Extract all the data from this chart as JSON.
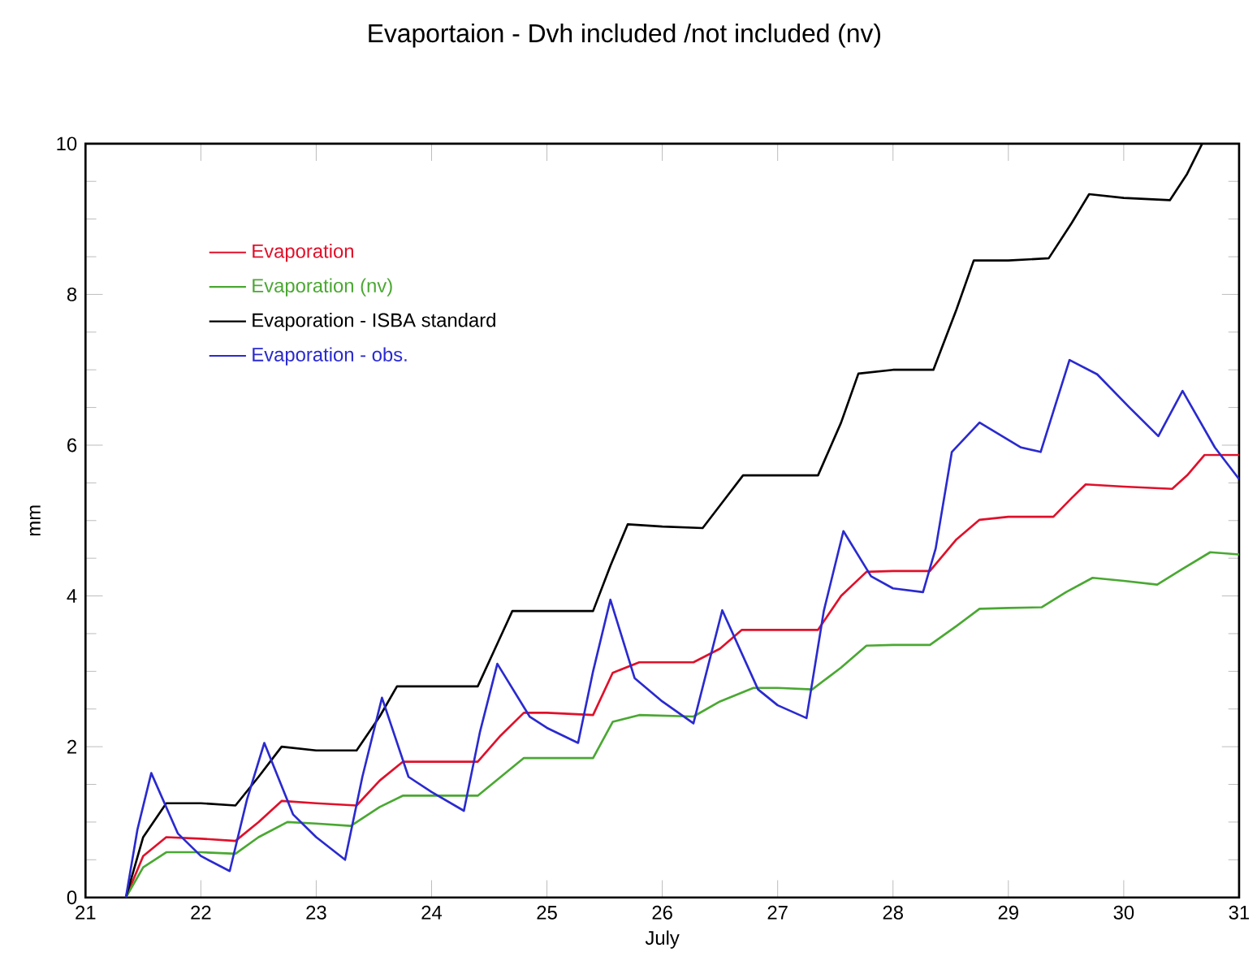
{
  "chart_data": {
    "type": "line",
    "title": "Evaportaion - Dvh included /not included (nv)",
    "xlabel": "July",
    "ylabel": "mm",
    "xlim": [
      21,
      31
    ],
    "ylim": [
      0,
      10
    ],
    "xticks": [
      21,
      22,
      23,
      24,
      25,
      26,
      27,
      28,
      29,
      30,
      31
    ],
    "yticks": [
      0,
      2,
      4,
      6,
      8,
      10
    ],
    "legend": "top left",
    "series": [
      {
        "name": "Evaporation",
        "color": "#e0102a",
        "x": [
          21.35,
          21.5,
          21.7,
          22.0,
          22.3,
          22.5,
          22.7,
          23.0,
          23.35,
          23.55,
          23.75,
          24.0,
          24.4,
          24.6,
          24.8,
          25.0,
          25.4,
          25.57,
          25.8,
          26.27,
          26.5,
          26.69,
          27.0,
          27.35,
          27.55,
          27.77,
          28.0,
          28.32,
          28.55,
          28.75,
          29.0,
          29.39,
          29.55,
          29.67,
          30.0,
          30.42,
          30.55,
          30.7,
          31
        ],
        "values": [
          0,
          0.55,
          0.8,
          0.78,
          0.75,
          1.0,
          1.28,
          1.25,
          1.22,
          1.55,
          1.8,
          1.8,
          1.8,
          2.15,
          2.45,
          2.45,
          2.42,
          2.98,
          3.12,
          3.12,
          3.3,
          3.55,
          3.55,
          3.55,
          4.0,
          4.32,
          4.33,
          4.33,
          4.75,
          5.01,
          5.05,
          5.05,
          5.3,
          5.48,
          5.45,
          5.42,
          5.6,
          5.87,
          5.87
        ]
      },
      {
        "name": "Evaporation (nv)",
        "color": "#4aa832",
        "x": [
          21.35,
          21.5,
          21.7,
          22.0,
          22.3,
          22.5,
          22.75,
          23.0,
          23.3,
          23.55,
          23.75,
          24.0,
          24.4,
          24.6,
          24.8,
          25.0,
          25.4,
          25.57,
          25.8,
          26.27,
          26.5,
          26.79,
          27.0,
          27.3,
          27.55,
          27.77,
          28.0,
          28.32,
          28.55,
          28.75,
          29.0,
          29.29,
          29.5,
          29.73,
          30.0,
          30.29,
          30.5,
          30.75,
          31
        ],
        "values": [
          0,
          0.4,
          0.6,
          0.6,
          0.58,
          0.8,
          1.0,
          0.98,
          0.95,
          1.2,
          1.35,
          1.35,
          1.35,
          1.6,
          1.85,
          1.85,
          1.85,
          2.33,
          2.42,
          2.4,
          2.6,
          2.78,
          2.78,
          2.76,
          3.05,
          3.34,
          3.35,
          3.35,
          3.6,
          3.83,
          3.84,
          3.85,
          4.05,
          4.24,
          4.2,
          4.15,
          4.35,
          4.58,
          4.55
        ]
      },
      {
        "name": "Evaporation - ISBA standard",
        "color": "#000000",
        "x": [
          21.35,
          21.5,
          21.7,
          22.0,
          22.3,
          22.5,
          22.7,
          23.0,
          23.35,
          23.55,
          23.7,
          24.0,
          24.4,
          24.55,
          24.7,
          25.0,
          25.4,
          25.55,
          25.7,
          26.0,
          26.35,
          26.55,
          26.7,
          27.0,
          27.35,
          27.55,
          27.7,
          28.0,
          28.35,
          28.55,
          28.7,
          29.0,
          29.35,
          29.55,
          29.7,
          30.0,
          30.4,
          30.55,
          30.68
        ],
        "values": [
          0,
          0.8,
          1.25,
          1.25,
          1.22,
          1.6,
          2.0,
          1.95,
          1.95,
          2.4,
          2.8,
          2.8,
          2.8,
          3.3,
          3.8,
          3.8,
          3.8,
          4.4,
          4.95,
          4.92,
          4.9,
          5.3,
          5.6,
          5.6,
          5.6,
          6.3,
          6.95,
          7.0,
          7.0,
          7.8,
          8.45,
          8.45,
          8.48,
          8.95,
          9.33,
          9.28,
          9.25,
          9.6,
          10
        ]
      },
      {
        "name": "Evaporation - obs.",
        "color": "#2a2ad0",
        "x": [
          21.35,
          21.45,
          21.57,
          21.8,
          22.0,
          22.25,
          22.4,
          22.55,
          22.8,
          23.0,
          23.25,
          23.4,
          23.57,
          23.8,
          24.0,
          24.28,
          24.42,
          24.57,
          24.85,
          25.0,
          25.27,
          25.4,
          25.55,
          25.76,
          26.0,
          26.27,
          26.52,
          26.83,
          27.0,
          27.25,
          27.4,
          27.57,
          27.81,
          28.0,
          28.26,
          28.37,
          28.51,
          28.75,
          29.11,
          29.28,
          29.53,
          29.77,
          30.05,
          30.3,
          30.51,
          30.79,
          31
        ],
        "values": [
          0,
          0.9,
          1.65,
          0.85,
          0.55,
          0.35,
          1.3,
          2.05,
          1.1,
          0.8,
          0.5,
          1.6,
          2.65,
          1.6,
          1.4,
          1.15,
          2.2,
          3.1,
          2.4,
          2.25,
          2.05,
          3.0,
          3.95,
          2.91,
          2.6,
          2.31,
          3.81,
          2.76,
          2.55,
          2.38,
          3.8,
          4.86,
          4.26,
          4.1,
          4.05,
          4.63,
          5.91,
          6.3,
          5.97,
          5.91,
          7.13,
          6.94,
          6.5,
          6.12,
          6.72,
          5.97,
          5.55
        ]
      }
    ]
  }
}
